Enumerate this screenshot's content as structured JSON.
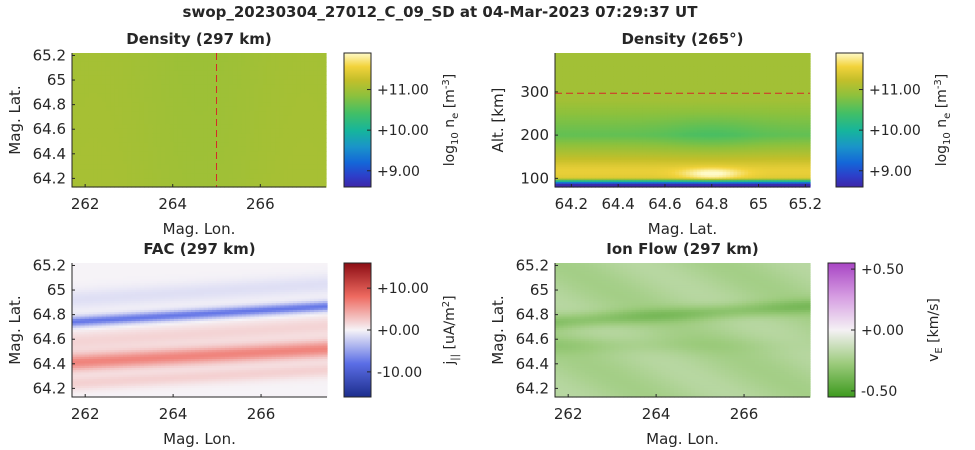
{
  "suptitle": "swop_20230304_27012_C_09_SD at 04-Mar-2023 07:29:37 UT",
  "chart_data": [
    {
      "id": "density-map",
      "type": "heatmap",
      "title": "Density (297 km)",
      "xlabel": "Mag. Lon.",
      "ylabel": "Mag. Lat.",
      "xlim": [
        261.7,
        267.5
      ],
      "ylim": [
        64.13,
        65.22
      ],
      "xticks": [
        262,
        264,
        266
      ],
      "yticks": [
        64.2,
        64.4,
        64.6,
        64.8,
        65,
        65.2
      ],
      "xtick_labels": [
        "262",
        "264",
        "266"
      ],
      "ytick_labels": [
        "64.2",
        "64.4",
        "64.6",
        "64.8",
        "65",
        "65.2"
      ],
      "field": "uniform ~11.0 log10 m^-3",
      "marker_line": {
        "orientation": "vertical",
        "value": 265,
        "color": "#d62728",
        "style": "dashed"
      },
      "colorbar": {
        "colormap": "parula-like",
        "range": [
          8.6,
          11.9
        ],
        "ticks": [
          9,
          10,
          11
        ],
        "tick_labels": [
          "+9.00",
          "+10.00",
          "+11.00"
        ],
        "label": "log10 ne [m-3]",
        "label_main": "log",
        "label_sub": "10",
        "label_mid": " n",
        "label_sub2": "e",
        "label_end": " [m",
        "label_sup": "-3",
        "label_close": "]"
      }
    },
    {
      "id": "density-profile",
      "type": "heatmap",
      "title": "Density (265°)",
      "xlabel": "Mag. Lat.",
      "ylabel": "Alt. [km]",
      "xlim": [
        64.13,
        65.22
      ],
      "ylim": [
        80,
        390
      ],
      "xticks": [
        64.2,
        64.4,
        64.6,
        64.8,
        65,
        65.2
      ],
      "yticks": [
        100,
        200,
        300
      ],
      "xtick_labels": [
        "64.2",
        "64.4",
        "64.6",
        "64.8",
        "65",
        "65.2"
      ],
      "ytick_labels": [
        "100",
        "200",
        "300"
      ],
      "field": "low density below ~90 km, peak ~11.8 near 110 km at lat 64.8, ~10.6 around 200 km, ~11.0 above 280 km",
      "marker_line": {
        "orientation": "horizontal",
        "value": 297,
        "color": "#d62728",
        "style": "dashed"
      },
      "colorbar": {
        "colormap": "parula-like",
        "range": [
          8.6,
          11.9
        ],
        "ticks": [
          9,
          10,
          11
        ],
        "tick_labels": [
          "+9.00",
          "+10.00",
          "+11.00"
        ],
        "label": "log10 ne [m-3]",
        "label_main": "log",
        "label_sub": "10",
        "label_mid": " n",
        "label_sub2": "e",
        "label_end": " [m",
        "label_sup": "-3",
        "label_close": "]"
      }
    },
    {
      "id": "fac-map",
      "type": "heatmap",
      "title": "FAC (297 km)",
      "xlabel": "Mag. Lon.",
      "ylabel": "Mag. Lat.",
      "xlim": [
        261.7,
        267.5
      ],
      "ylim": [
        64.13,
        65.22
      ],
      "xticks": [
        262,
        264,
        266
      ],
      "yticks": [
        64.2,
        64.4,
        64.6,
        64.8,
        65,
        65.2
      ],
      "xtick_labels": [
        "262",
        "264",
        "266"
      ],
      "ytick_labels": [
        "64.2",
        "64.4",
        "64.6",
        "64.8",
        "65",
        "65.2"
      ],
      "field": "blue negative band near lat 64.75-64.85, red positive band near lat 64.4-64.5",
      "colorbar": {
        "colormap": "red-white-blue",
        "range": [
          -16,
          16
        ],
        "ticks": [
          -10,
          0,
          10
        ],
        "tick_labels": [
          "-10.00",
          "+0.00",
          "+10.00"
        ],
        "label": "j|| [uA/m2]",
        "label_main": "j",
        "label_sub": "||",
        "label_end": " [uA/m",
        "label_sup": "2",
        "label_close": "]"
      }
    },
    {
      "id": "ion-flow-map",
      "type": "heatmap",
      "title": "Ion Flow (297 km)",
      "xlabel": "Mag. Lon.",
      "ylabel": "Mag. Lat.",
      "xlim": [
        261.7,
        267.5
      ],
      "ylim": [
        64.13,
        65.22
      ],
      "xticks": [
        262,
        264,
        266
      ],
      "yticks": [
        64.2,
        64.4,
        64.6,
        64.8,
        65,
        65.2
      ],
      "xtick_labels": [
        "262",
        "264",
        "266"
      ],
      "ytick_labels": [
        "64.2",
        "64.4",
        "64.6",
        "64.8",
        "65",
        "65.2"
      ],
      "field": "negative flow everywhere, strongest band near lat 64.75-64.85",
      "colorbar": {
        "colormap": "purple-white-green",
        "range": [
          -0.55,
          0.55
        ],
        "ticks": [
          -0.5,
          0,
          0.5
        ],
        "tick_labels": [
          "-0.50",
          "+0.00",
          "+0.50"
        ],
        "label": "vE [km/s]",
        "label_main": "v",
        "label_sub": "E",
        "label_end": " [km/s]"
      }
    }
  ]
}
